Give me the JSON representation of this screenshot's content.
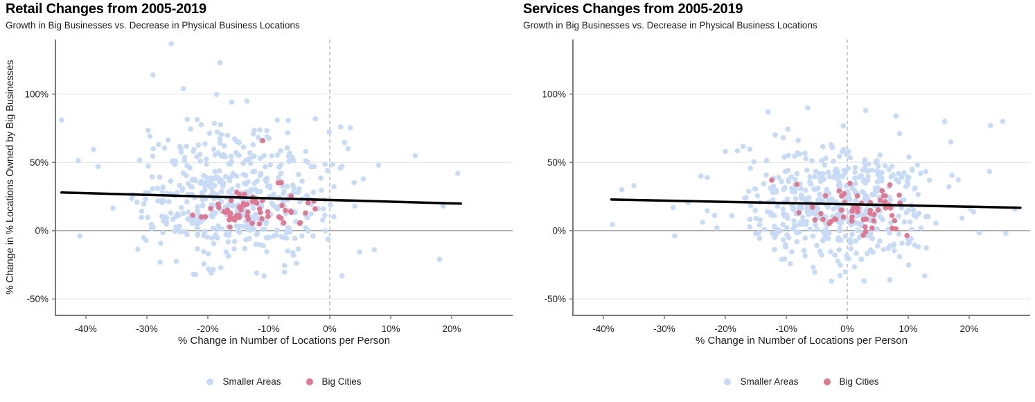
{
  "page": {
    "background": "#ffffff"
  },
  "chart_data": [
    {
      "type": "scatter",
      "title": "Retail Changes from 2005-2019",
      "subtitle": "Growth in Big Businesses vs. Decrease in Physical Business Locations",
      "xlabel": "% Change in Number of Locations per Person",
      "ylabel": "% Change in % Locations Owned by Big Businesses",
      "xlim": [
        -45,
        30
      ],
      "ylim": [
        -62,
        140
      ],
      "x_ticks": [
        {
          "value": -40,
          "label": "-40%"
        },
        {
          "value": -30,
          "label": "-30%"
        },
        {
          "value": -20,
          "label": "-20%"
        },
        {
          "value": -10,
          "label": "-10%"
        },
        {
          "value": 0,
          "label": "0%"
        },
        {
          "value": 10,
          "label": "10%"
        },
        {
          "value": 20,
          "label": "20%"
        }
      ],
      "y_ticks": [
        {
          "value": 100,
          "label": "100%"
        },
        {
          "value": 50,
          "label": "50%"
        },
        {
          "value": 0,
          "label": "0%"
        },
        {
          "value": -50,
          "label": "-50%"
        }
      ],
      "grid_y_values": [
        100,
        50,
        0,
        -50
      ],
      "reference_lines": {
        "vertical_dashed_x": 0,
        "horizontal_solid_y": 0
      },
      "legend": [
        {
          "label": "Smaller Areas"
        },
        {
          "label": "Big Cities"
        }
      ],
      "colors": {
        "smaller_areas": "#c7dbf7",
        "big_cities": "#df7890",
        "trend": "#000000",
        "grid": "#e4e4e4",
        "zero_line": "#a8a8a8",
        "axis": "#7a7a7a",
        "vline": "#ababab",
        "text": "#1c1c1c"
      },
      "series": [
        {
          "name": "Smaller Areas",
          "color": "#c7dbf7",
          "count": 500,
          "seed": 7,
          "cluster": {
            "mean_x": -16.5,
            "sd_x": 8.5,
            "mean_y": 26,
            "sd_y": 26,
            "clamp_x": [
              -44.5,
              22
            ],
            "clamp_y": [
              -36,
              108
            ]
          },
          "outlier_points": [
            [
              -26,
              137
            ],
            [
              -18,
              123
            ],
            [
              -29,
              114
            ],
            [
              -24,
              104
            ],
            [
              -44,
              81
            ],
            [
              -41,
              -4
            ],
            [
              -38,
              47
            ],
            [
              21,
              42
            ],
            [
              18.6,
              18
            ],
            [
              18,
              -21
            ],
            [
              14,
              55
            ],
            [
              8,
              48
            ],
            [
              5.5,
              38
            ],
            [
              2,
              -33
            ],
            [
              -12,
              -31
            ],
            [
              -22,
              -32
            ],
            [
              3,
              60
            ],
            [
              2,
              47
            ]
          ]
        },
        {
          "name": "Big Cities",
          "color": "#df7890",
          "count": 58,
          "seed": 13,
          "cluster": {
            "mean_x": -15,
            "sd_x": 5.5,
            "mean_y": 13,
            "sd_y": 9,
            "clamp_x": [
              -27,
              -2
            ],
            "clamp_y": [
              -2,
              50
            ]
          },
          "outlier_points": [
            [
              -11,
              66
            ],
            [
              -6.4,
              14
            ],
            [
              -2.4,
              16
            ]
          ]
        }
      ],
      "trend_line": {
        "x1": -44,
        "y1": 28,
        "x2": 21.5,
        "y2": 19.8,
        "color": "#000000"
      }
    },
    {
      "type": "scatter",
      "title": "Services Changes from 2005-2019",
      "subtitle": "Growth in Big Businesses vs. Decrease in Physical Business Locations",
      "xlabel": "% Change in Number of Locations per Person",
      "xlim": [
        -45,
        30
      ],
      "ylim": [
        -62,
        140
      ],
      "x_ticks": [
        {
          "value": -40,
          "label": "-40%"
        },
        {
          "value": -30,
          "label": "-30%"
        },
        {
          "value": -20,
          "label": "-20%"
        },
        {
          "value": -10,
          "label": "-10%"
        },
        {
          "value": 0,
          "label": "0%"
        },
        {
          "value": 10,
          "label": "10%"
        },
        {
          "value": 20,
          "label": "20%"
        }
      ],
      "y_ticks": [
        {
          "value": 100,
          "label": "100%"
        },
        {
          "value": 50,
          "label": "50%"
        },
        {
          "value": 0,
          "label": "0%"
        },
        {
          "value": -50,
          "label": "-50%"
        }
      ],
      "grid_y_values": [
        100,
        50,
        0,
        -50
      ],
      "reference_lines": {
        "vertical_dashed_x": 0,
        "horizontal_solid_y": 0
      },
      "legend": [
        {
          "label": "Smaller Areas"
        },
        {
          "label": "Big Cities"
        }
      ],
      "colors": {
        "smaller_areas": "#c7dbf7",
        "big_cities": "#df7890",
        "trend": "#000000",
        "grid": "#e4e4e4",
        "zero_line": "#a8a8a8",
        "axis": "#7a7a7a",
        "vline": "#ababab",
        "text": "#1c1c1c"
      },
      "series": [
        {
          "name": "Smaller Areas",
          "color": "#c7dbf7",
          "count": 500,
          "seed": 5,
          "cluster": {
            "mean_x": -1.5,
            "sd_x": 8.5,
            "mean_y": 19,
            "sd_y": 22,
            "clamp_x": [
              -38.5,
              27.5
            ],
            "clamp_y": [
              -42,
              92
            ]
          },
          "outlier_points": [
            [
              -37,
              30
            ],
            [
              -38.5,
              4.5
            ],
            [
              -35,
              33
            ],
            [
              27.5,
              16
            ],
            [
              25.5,
              80
            ],
            [
              16,
              80
            ],
            [
              23.5,
              77
            ],
            [
              -13,
              87
            ],
            [
              -6.5,
              90
            ],
            [
              3,
              88
            ],
            [
              8,
              84
            ],
            [
              -2.6,
              -37
            ],
            [
              7,
              -36
            ],
            [
              12.7,
              -33
            ],
            [
              26,
              -2
            ],
            [
              -20,
              58
            ],
            [
              -24,
              40
            ],
            [
              17,
              65
            ]
          ]
        },
        {
          "name": "Big Cities",
          "color": "#df7890",
          "count": 55,
          "seed": 17,
          "cluster": {
            "mean_x": 2.5,
            "sd_x": 5.5,
            "mean_y": 16,
            "sd_y": 10,
            "clamp_x": [
              -13.5,
              11
            ],
            "clamp_y": [
              -5,
              38
            ]
          },
          "outlier_points": [
            [
              -12.4,
              37
            ],
            [
              7,
              33.5
            ],
            [
              9.8,
              -3.5
            ]
          ]
        }
      ],
      "trend_line": {
        "x1": -38.7,
        "y1": 22.8,
        "x2": 28.4,
        "y2": 16.8,
        "color": "#000000"
      }
    }
  ]
}
